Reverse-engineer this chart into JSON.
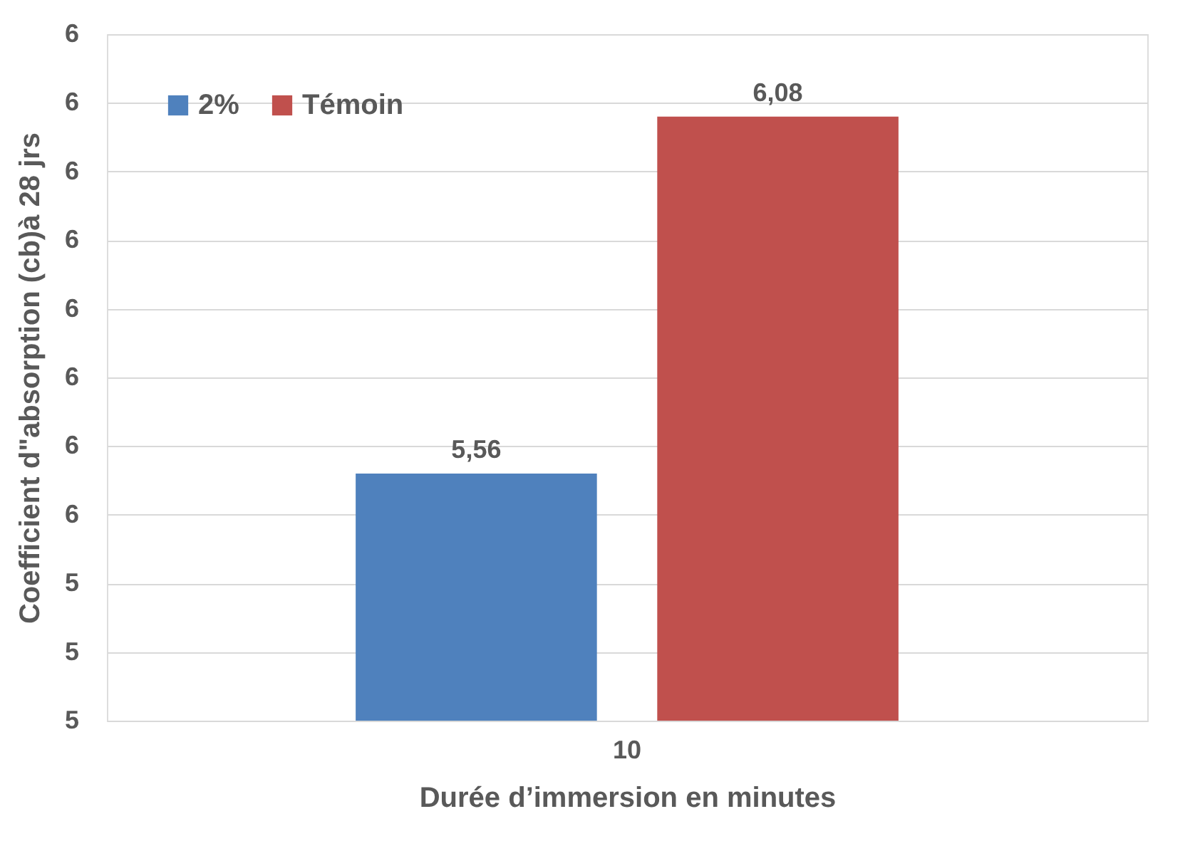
{
  "chart_data": {
    "type": "bar",
    "xlabel": "Durée d’immersion en minutes",
    "ylabel": "Coefficient d\"absorption (cb)à 28 jrs",
    "categories": [
      "10"
    ],
    "series": [
      {
        "name": "2%",
        "color": "#4f81bd",
        "values": [
          5.56
        ],
        "value_labels": [
          "5,56"
        ]
      },
      {
        "name": "Témoin",
        "color": "#c0504d",
        "values": [
          6.08
        ],
        "value_labels": [
          "6,08"
        ]
      }
    ],
    "ylim": [
      5.2,
      6.2
    ],
    "yticks": [
      {
        "value": 5.2,
        "label": "5"
      },
      {
        "value": 5.3,
        "label": "5"
      },
      {
        "value": 5.4,
        "label": "5"
      },
      {
        "value": 5.5,
        "label": "6"
      },
      {
        "value": 5.6,
        "label": "6"
      },
      {
        "value": 5.7,
        "label": "6"
      },
      {
        "value": 5.8,
        "label": "6"
      },
      {
        "value": 5.9,
        "label": "6"
      },
      {
        "value": 6.0,
        "label": "6"
      },
      {
        "value": 6.1,
        "label": "6"
      },
      {
        "value": 6.2,
        "label": "6"
      }
    ],
    "grid": "y",
    "legend": "top left"
  }
}
